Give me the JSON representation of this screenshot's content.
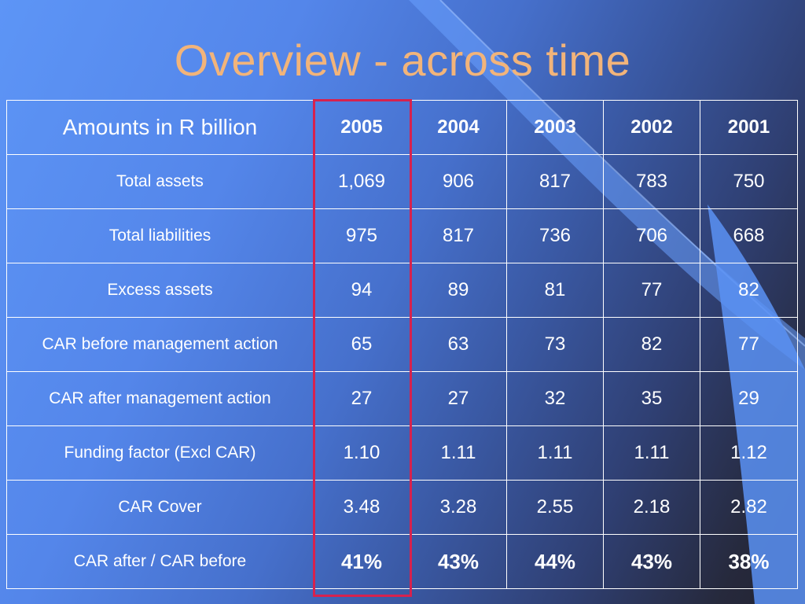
{
  "slide": {
    "title": "Overview - across time"
  },
  "table": {
    "header_label": "Amounts in R billion",
    "years": [
      "2005",
      "2004",
      "2003",
      "2002",
      "2001"
    ],
    "rows": [
      {
        "label": "Total assets",
        "values": [
          "1,069",
          "906",
          "817",
          "783",
          "750"
        ]
      },
      {
        "label": "Total liabilities",
        "values": [
          "975",
          "817",
          "736",
          "706",
          "668"
        ]
      },
      {
        "label": "Excess assets",
        "values": [
          "94",
          "89",
          "81",
          "77",
          "82"
        ]
      },
      {
        "label": "CAR before management action",
        "values": [
          "65",
          "63",
          "73",
          "82",
          "77"
        ]
      },
      {
        "label": "CAR after management action",
        "values": [
          "27",
          "27",
          "32",
          "35",
          "29"
        ]
      },
      {
        "label": "Funding factor (Excl CAR)",
        "values": [
          "1.10",
          "1.11",
          "1.11",
          "1.11",
          "1.12"
        ]
      },
      {
        "label": "CAR Cover",
        "values": [
          "3.48",
          "3.28",
          "2.55",
          "2.18",
          "2.82"
        ]
      },
      {
        "label": "CAR after / CAR before",
        "values": [
          "41%",
          "43%",
          "44%",
          "43%",
          "38%"
        ]
      }
    ]
  },
  "colors": {
    "title": "#f2b47a",
    "highlight_border": "#d6224e",
    "text": "#ffffff"
  }
}
